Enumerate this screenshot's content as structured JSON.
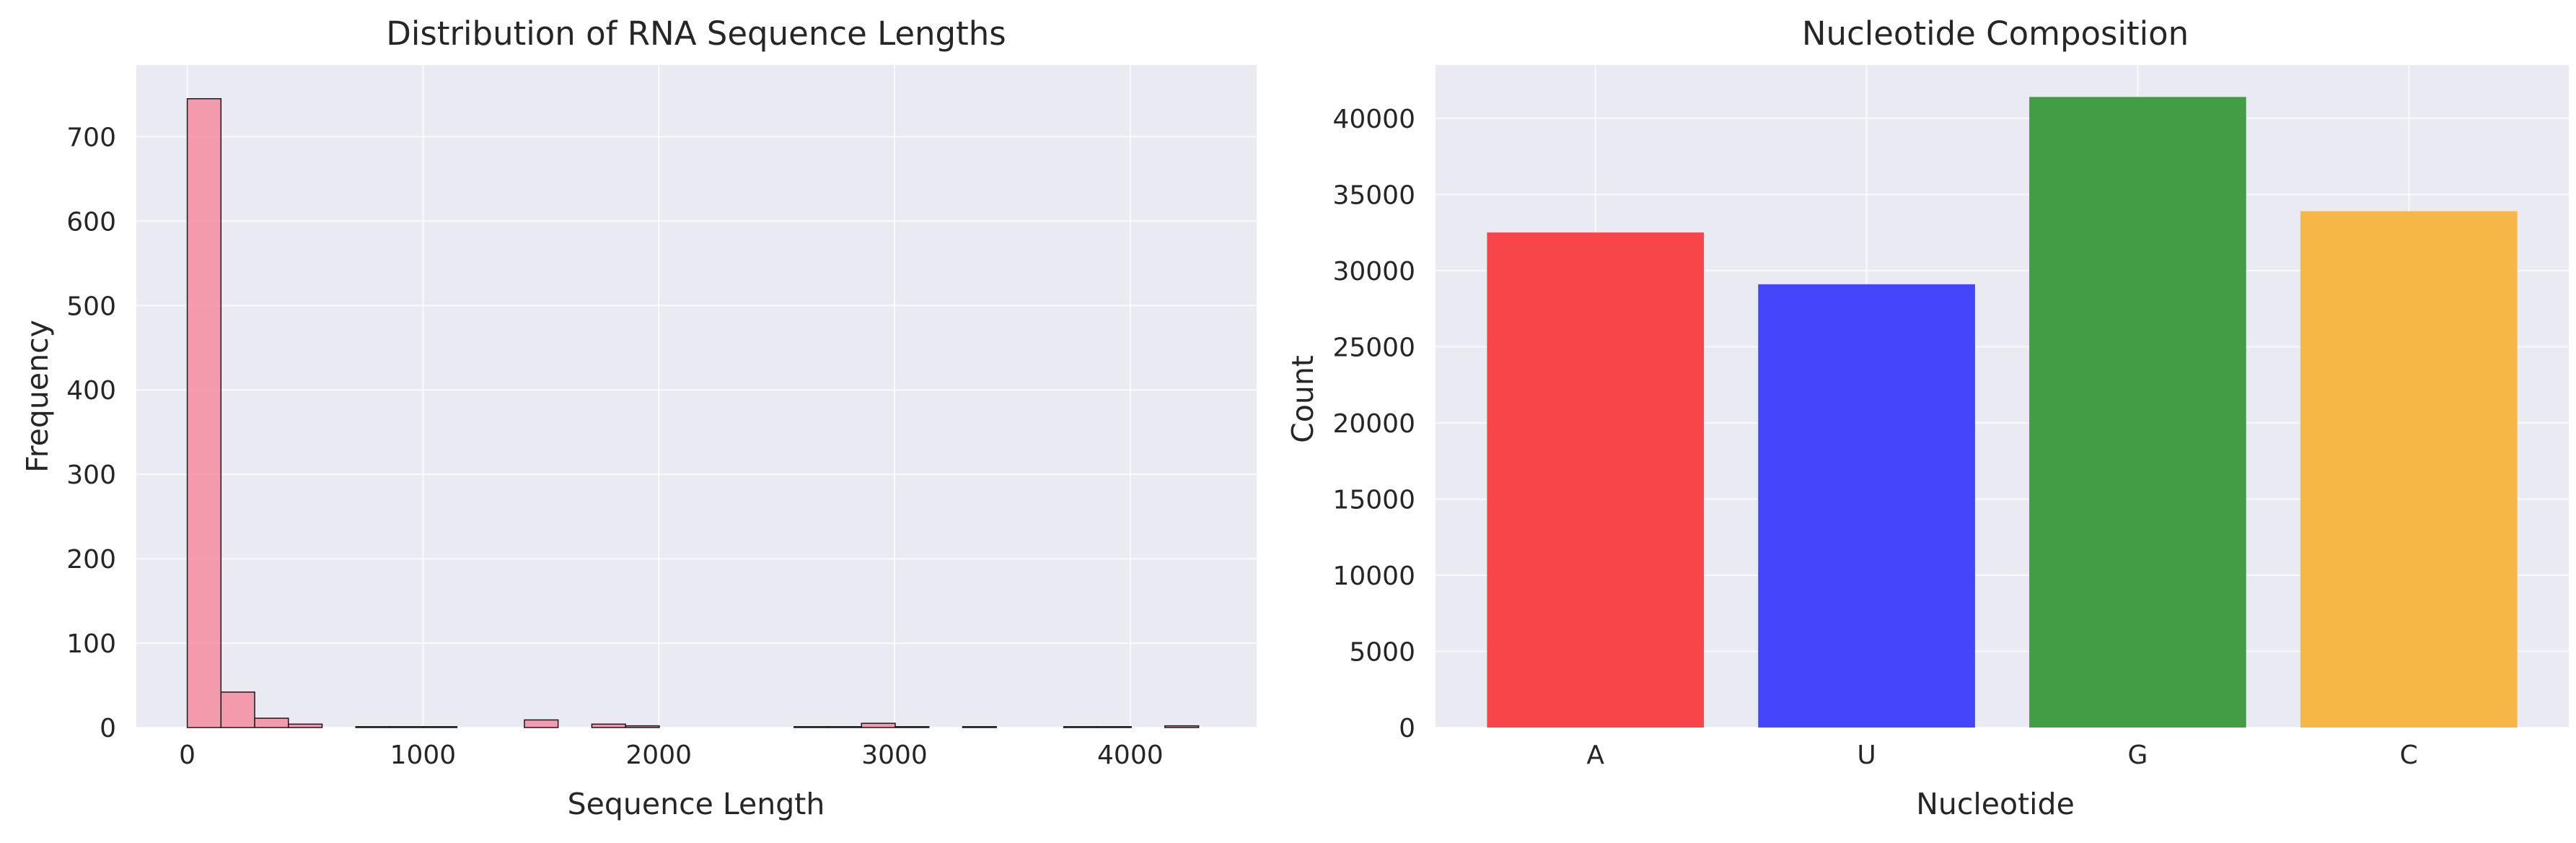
{
  "chart_data": [
    {
      "type": "bar",
      "title": "Distribution of RNA Sequence Lengths",
      "xlabel": "Sequence Length",
      "ylabel": "Frequency",
      "xlim": [
        -216,
        4536
      ],
      "ylim": [
        0,
        785
      ],
      "xticks": [
        0,
        1000,
        2000,
        3000,
        4000
      ],
      "yticks": [
        0,
        100,
        200,
        300,
        400,
        500,
        600,
        700
      ],
      "bin_width": 143,
      "bins": [
        {
          "x0": 0,
          "value": 745
        },
        {
          "x0": 143,
          "value": 42
        },
        {
          "x0": 286,
          "value": 11
        },
        {
          "x0": 429,
          "value": 4
        },
        {
          "x0": 572,
          "value": 0
        },
        {
          "x0": 715,
          "value": 1
        },
        {
          "x0": 858,
          "value": 1
        },
        {
          "x0": 1001,
          "value": 1
        },
        {
          "x0": 1144,
          "value": 0
        },
        {
          "x0": 1287,
          "value": 0
        },
        {
          "x0": 1430,
          "value": 9
        },
        {
          "x0": 1573,
          "value": 0
        },
        {
          "x0": 1716,
          "value": 4
        },
        {
          "x0": 1859,
          "value": 2
        },
        {
          "x0": 2002,
          "value": 0
        },
        {
          "x0": 2145,
          "value": 0
        },
        {
          "x0": 2288,
          "value": 0
        },
        {
          "x0": 2431,
          "value": 0
        },
        {
          "x0": 2574,
          "value": 1
        },
        {
          "x0": 2717,
          "value": 1
        },
        {
          "x0": 2860,
          "value": 5
        },
        {
          "x0": 3003,
          "value": 1
        },
        {
          "x0": 3146,
          "value": 0
        },
        {
          "x0": 3289,
          "value": 1
        },
        {
          "x0": 3432,
          "value": 0
        },
        {
          "x0": 3575,
          "value": 0
        },
        {
          "x0": 3718,
          "value": 1
        },
        {
          "x0": 3861,
          "value": 1
        },
        {
          "x0": 4004,
          "value": 0
        },
        {
          "x0": 4147,
          "value": 2
        }
      ],
      "bar_color": "#f48da1",
      "edge_color": "#1a1a1a",
      "grid": true
    },
    {
      "type": "bar",
      "title": "Nucleotide Composition",
      "xlabel": "Nucleotide",
      "ylabel": "Count",
      "categories": [
        "A",
        "U",
        "G",
        "C"
      ],
      "values": [
        32500,
        29100,
        41400,
        33900
      ],
      "colors": [
        "#f84549",
        "#4545fb",
        "#439d45",
        "#f6b746"
      ],
      "ylim": [
        0,
        43500
      ],
      "yticks": [
        0,
        5000,
        10000,
        15000,
        20000,
        25000,
        30000,
        35000,
        40000
      ],
      "grid": true
    }
  ]
}
